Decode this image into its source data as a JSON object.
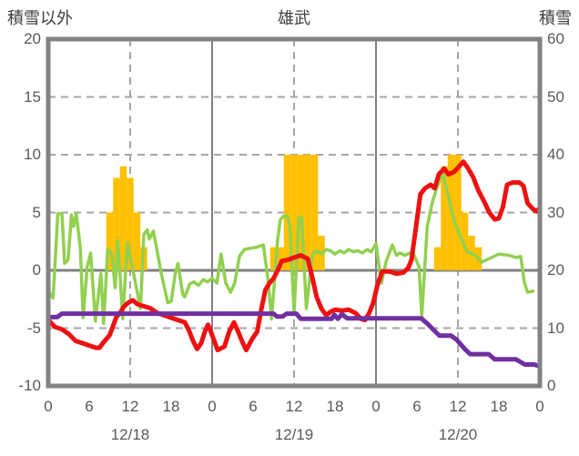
{
  "header": {
    "left_axis_title": "積雪以外",
    "chart_title": "雄武",
    "right_axis_title": "積雪"
  },
  "colors": {
    "bar": "#FFC000",
    "red_line": "#EE1111",
    "green_line": "#92D050",
    "purple_line": "#7030A0",
    "grid_dashed": "#A6A6A6",
    "grid_solid": "#808080",
    "border": "#828282",
    "tick_text": "#595959",
    "title_text": "#404040",
    "background": "#FFFFFF"
  },
  "chart_data": {
    "type": "combo-bar-line",
    "title": "雄武",
    "left_axis": {
      "title": "積雪以外",
      "min": -10,
      "max": 20,
      "ticks": [
        20,
        15,
        10,
        5,
        0,
        -5,
        -10
      ]
    },
    "right_axis": {
      "title": "積雪",
      "min": 0,
      "max": 60,
      "ticks": [
        60,
        50,
        40,
        30,
        20,
        10,
        0
      ]
    },
    "x_axis": {
      "total_hours": 72,
      "tick_hours": [
        0,
        6,
        12,
        18,
        24,
        30,
        36,
        42,
        48,
        54,
        60,
        66,
        72
      ],
      "tick_labels": [
        "0",
        "6",
        "12",
        "18",
        "0",
        "6",
        "12",
        "18",
        "0",
        "6",
        "12",
        "18",
        "0"
      ],
      "date_labels": [
        {
          "label": "12/18",
          "center_hour": 12
        },
        {
          "label": "12/19",
          "center_hour": 36
        },
        {
          "label": "12/20",
          "center_hour": 60
        }
      ]
    },
    "grid": {
      "horizontal_dashed_at": [
        15,
        10,
        5,
        -5
      ],
      "horizontal_solid_at": [
        0
      ],
      "vertical_dashed_at_hours": [
        12,
        36,
        60
      ],
      "vertical_solid_at_hours": [
        24,
        48
      ]
    },
    "bars": {
      "name": "snowfall-bars",
      "axis": "left",
      "color": "#FFC000",
      "bar_width_hours": 1,
      "points": [
        [
          9,
          5
        ],
        [
          10,
          8
        ],
        [
          11,
          9
        ],
        [
          12,
          8
        ],
        [
          13,
          5
        ],
        [
          14,
          2
        ],
        [
          33,
          2
        ],
        [
          34,
          2
        ],
        [
          35,
          10
        ],
        [
          36,
          10
        ],
        [
          37,
          10
        ],
        [
          38,
          10
        ],
        [
          39,
          10
        ],
        [
          40,
          3
        ],
        [
          57,
          2
        ],
        [
          58,
          9
        ],
        [
          59,
          10
        ],
        [
          60,
          10
        ],
        [
          61,
          5
        ],
        [
          62,
          3
        ],
        [
          63,
          2
        ]
      ]
    },
    "series": [
      {
        "name": "green-line",
        "axis": "left",
        "color": "#92D050",
        "width": 3.5,
        "points": [
          [
            0,
            -1.8
          ],
          [
            0.7,
            -2.4
          ],
          [
            1.4,
            4.9
          ],
          [
            2,
            4.9
          ],
          [
            2.4,
            0.6
          ],
          [
            2.9,
            0.9
          ],
          [
            3.4,
            4.8
          ],
          [
            3.7,
            3.8
          ],
          [
            4.1,
            4.9
          ],
          [
            4.7,
            1.9
          ],
          [
            5.1,
            -4.1
          ],
          [
            5.7,
            0.3
          ],
          [
            6.2,
            1.5
          ],
          [
            6.9,
            -4.4
          ],
          [
            7.7,
            -0.3
          ],
          [
            8.1,
            -4.6
          ],
          [
            8.7,
            1.8
          ],
          [
            9.3,
            1.4
          ],
          [
            9.8,
            -1.5
          ],
          [
            10.2,
            2.6
          ],
          [
            10.9,
            -4.2
          ],
          [
            11.6,
            2.4
          ],
          [
            12.1,
            0.9
          ],
          [
            13.5,
            -3.3
          ],
          [
            14,
            3.1
          ],
          [
            14.5,
            3.5
          ],
          [
            14.8,
            2.7
          ],
          [
            15.4,
            3.4
          ],
          [
            16,
            1.5
          ],
          [
            16.6,
            -0.4
          ],
          [
            17.5,
            -2.8
          ],
          [
            18,
            -2.7
          ],
          [
            18.6,
            -0.3
          ],
          [
            19,
            0.6
          ],
          [
            19.7,
            -2.1
          ],
          [
            20,
            -2.3
          ],
          [
            20.7,
            -1.2
          ],
          [
            21.3,
            -1.0
          ],
          [
            22,
            -1.3
          ],
          [
            22.7,
            -0.8
          ],
          [
            23.3,
            -1.0
          ],
          [
            24,
            -0.7
          ],
          [
            24.7,
            -1.1
          ],
          [
            25.3,
            1.4
          ],
          [
            26,
            -1.1
          ],
          [
            26.7,
            -1.9
          ],
          [
            27.3,
            -1.1
          ],
          [
            28,
            1.2
          ],
          [
            28.7,
            1.8
          ],
          [
            29.5,
            1.9
          ],
          [
            30.5,
            2.0
          ],
          [
            31.5,
            2.2
          ],
          [
            32.2,
            -0.9
          ],
          [
            32.7,
            -4.2
          ],
          [
            33.6,
            2.7
          ],
          [
            34,
            4.4
          ],
          [
            34.5,
            4.7
          ],
          [
            35,
            4.7
          ],
          [
            35.4,
            3.8
          ],
          [
            36,
            -3.7
          ],
          [
            36.7,
            4.5
          ],
          [
            37.1,
            4.6
          ],
          [
            37.8,
            -3.3
          ],
          [
            38.7,
            1.4
          ],
          [
            39.3,
            1.7
          ],
          [
            40,
            1.4
          ],
          [
            40.7,
            1.8
          ],
          [
            41.3,
            1.7
          ],
          [
            42,
            1.4
          ],
          [
            42.7,
            1.7
          ],
          [
            43.3,
            1.5
          ],
          [
            44,
            1.8
          ],
          [
            44.7,
            1.6
          ],
          [
            45.3,
            1.7
          ],
          [
            46,
            1.5
          ],
          [
            46.7,
            1.8
          ],
          [
            47.3,
            1.6
          ],
          [
            48,
            2.3
          ],
          [
            48.8,
            -1.1
          ],
          [
            49.5,
            0.8
          ],
          [
            50.4,
            2.2
          ],
          [
            51,
            1.3
          ],
          [
            51.5,
            1.5
          ],
          [
            52.2,
            1.3
          ],
          [
            53,
            1.5
          ],
          [
            53.5,
            1.4
          ],
          [
            54.3,
            0.3
          ],
          [
            54.7,
            -4.0
          ],
          [
            55.5,
            3.8
          ],
          [
            56.3,
            6.0
          ],
          [
            57,
            7.3
          ],
          [
            57.8,
            8.4
          ],
          [
            58.7,
            6.1
          ],
          [
            59.6,
            4.0
          ],
          [
            60.5,
            2.7
          ],
          [
            61.4,
            1.6
          ],
          [
            62.5,
            1.3
          ],
          [
            63.5,
            0.7
          ],
          [
            64.5,
            1.0
          ],
          [
            66,
            1.4
          ],
          [
            67.5,
            1.3
          ],
          [
            68.5,
            1.1
          ],
          [
            69.2,
            1.2
          ],
          [
            69.7,
            -1.0
          ],
          [
            70.2,
            -1.9
          ],
          [
            71,
            -1.8
          ]
        ]
      },
      {
        "name": "red-line",
        "axis": "left",
        "color": "#EE1111",
        "width": 5,
        "points": [
          [
            0,
            -4.3
          ],
          [
            1,
            -4.9
          ],
          [
            2,
            -5.1
          ],
          [
            3,
            -5.5
          ],
          [
            4,
            -6.1
          ],
          [
            5,
            -6.3
          ],
          [
            6,
            -6.5
          ],
          [
            7,
            -6.7
          ],
          [
            7.5,
            -6.7
          ],
          [
            8,
            -6.3
          ],
          [
            9,
            -5.6
          ],
          [
            10,
            -4.0
          ],
          [
            10.5,
            -3.7
          ],
          [
            11,
            -3.2
          ],
          [
            11.5,
            -2.9
          ],
          [
            12,
            -2.7
          ],
          [
            12.4,
            -2.6
          ],
          [
            13,
            -2.9
          ],
          [
            13.4,
            -3.0
          ],
          [
            14,
            -3.1
          ],
          [
            15,
            -3.3
          ],
          [
            16,
            -3.7
          ],
          [
            17,
            -3.9
          ],
          [
            18,
            -4.1
          ],
          [
            19,
            -4.3
          ],
          [
            20,
            -4.5
          ],
          [
            20.6,
            -5.2
          ],
          [
            21.2,
            -6.1
          ],
          [
            21.8,
            -6.8
          ],
          [
            22.4,
            -6.3
          ],
          [
            23,
            -5.2
          ],
          [
            23.4,
            -4.7
          ],
          [
            24,
            -5.6
          ],
          [
            24.8,
            -6.9
          ],
          [
            25.8,
            -6.6
          ],
          [
            26.5,
            -5.3
          ],
          [
            27.2,
            -4.5
          ],
          [
            27.8,
            -5.3
          ],
          [
            28.5,
            -6.3
          ],
          [
            29,
            -6.9
          ],
          [
            29.8,
            -6.0
          ],
          [
            30.6,
            -5.3
          ],
          [
            31.2,
            -3.4
          ],
          [
            31.8,
            -1.7
          ],
          [
            32.4,
            -1.1
          ],
          [
            33,
            -0.7
          ],
          [
            33.6,
            0.0
          ],
          [
            34.2,
            0.8
          ],
          [
            35,
            0.9
          ],
          [
            36,
            1.1
          ],
          [
            37,
            1.3
          ],
          [
            38,
            1.0
          ],
          [
            38.7,
            -0.7
          ],
          [
            39.3,
            -2.3
          ],
          [
            40,
            -3.3
          ],
          [
            40.7,
            -3.9
          ],
          [
            41.3,
            -3.6
          ],
          [
            42,
            -3.4
          ],
          [
            43,
            -3.5
          ],
          [
            44,
            -3.4
          ],
          [
            45,
            -3.7
          ],
          [
            45.8,
            -4.2
          ],
          [
            46.4,
            -4.3
          ],
          [
            47,
            -3.7
          ],
          [
            47.6,
            -2.8
          ],
          [
            48.2,
            -1.3
          ],
          [
            48.9,
            -0.1
          ],
          [
            50,
            -0.1
          ],
          [
            51,
            -0.3
          ],
          [
            52,
            -0.2
          ],
          [
            52.7,
            0.2
          ],
          [
            53.2,
            0.9
          ],
          [
            53.8,
            3.5
          ],
          [
            54.5,
            6.6
          ],
          [
            55.2,
            7.1
          ],
          [
            56,
            7.4
          ],
          [
            56.6,
            7.1
          ],
          [
            57.2,
            8.3
          ],
          [
            58,
            8.8
          ],
          [
            58.6,
            8.3
          ],
          [
            59.4,
            8.5
          ],
          [
            60.2,
            9.0
          ],
          [
            60.8,
            9.4
          ],
          [
            61.5,
            8.8
          ],
          [
            62.2,
            8.1
          ],
          [
            63,
            6.9
          ],
          [
            63.8,
            6.0
          ],
          [
            64.6,
            5.0
          ],
          [
            65.4,
            4.4
          ],
          [
            66,
            4.5
          ],
          [
            66.6,
            5.5
          ],
          [
            67.2,
            7.4
          ],
          [
            68,
            7.6
          ],
          [
            69,
            7.6
          ],
          [
            69.6,
            7.3
          ],
          [
            70.2,
            5.8
          ],
          [
            71,
            5.3
          ],
          [
            71.5,
            5.1
          ],
          [
            72,
            5.4
          ]
        ]
      },
      {
        "name": "purple-line",
        "axis": "right",
        "color": "#7030A0",
        "width": 5,
        "points": [
          [
            0,
            11.9
          ],
          [
            1.3,
            11.9
          ],
          [
            2,
            12.5
          ],
          [
            33,
            12.5
          ],
          [
            33.5,
            12.0
          ],
          [
            34.3,
            12.0
          ],
          [
            34.9,
            12.5
          ],
          [
            36.3,
            12.5
          ],
          [
            37,
            11.6
          ],
          [
            41.5,
            11.6
          ],
          [
            41.9,
            12.3
          ],
          [
            42.4,
            11.6
          ],
          [
            43,
            12.4
          ],
          [
            43.8,
            11.7
          ],
          [
            54.6,
            11.7
          ],
          [
            55.5,
            10.8
          ],
          [
            56.5,
            9.6
          ],
          [
            57.3,
            8.7
          ],
          [
            59,
            8.7
          ],
          [
            59.8,
            8.0
          ],
          [
            61,
            6.4
          ],
          [
            61.8,
            5.5
          ],
          [
            64.5,
            5.5
          ],
          [
            65.4,
            4.6
          ],
          [
            68.5,
            4.6
          ],
          [
            69.8,
            3.7
          ],
          [
            71.2,
            3.7
          ],
          [
            71.9,
            3.4
          ]
        ]
      }
    ]
  }
}
